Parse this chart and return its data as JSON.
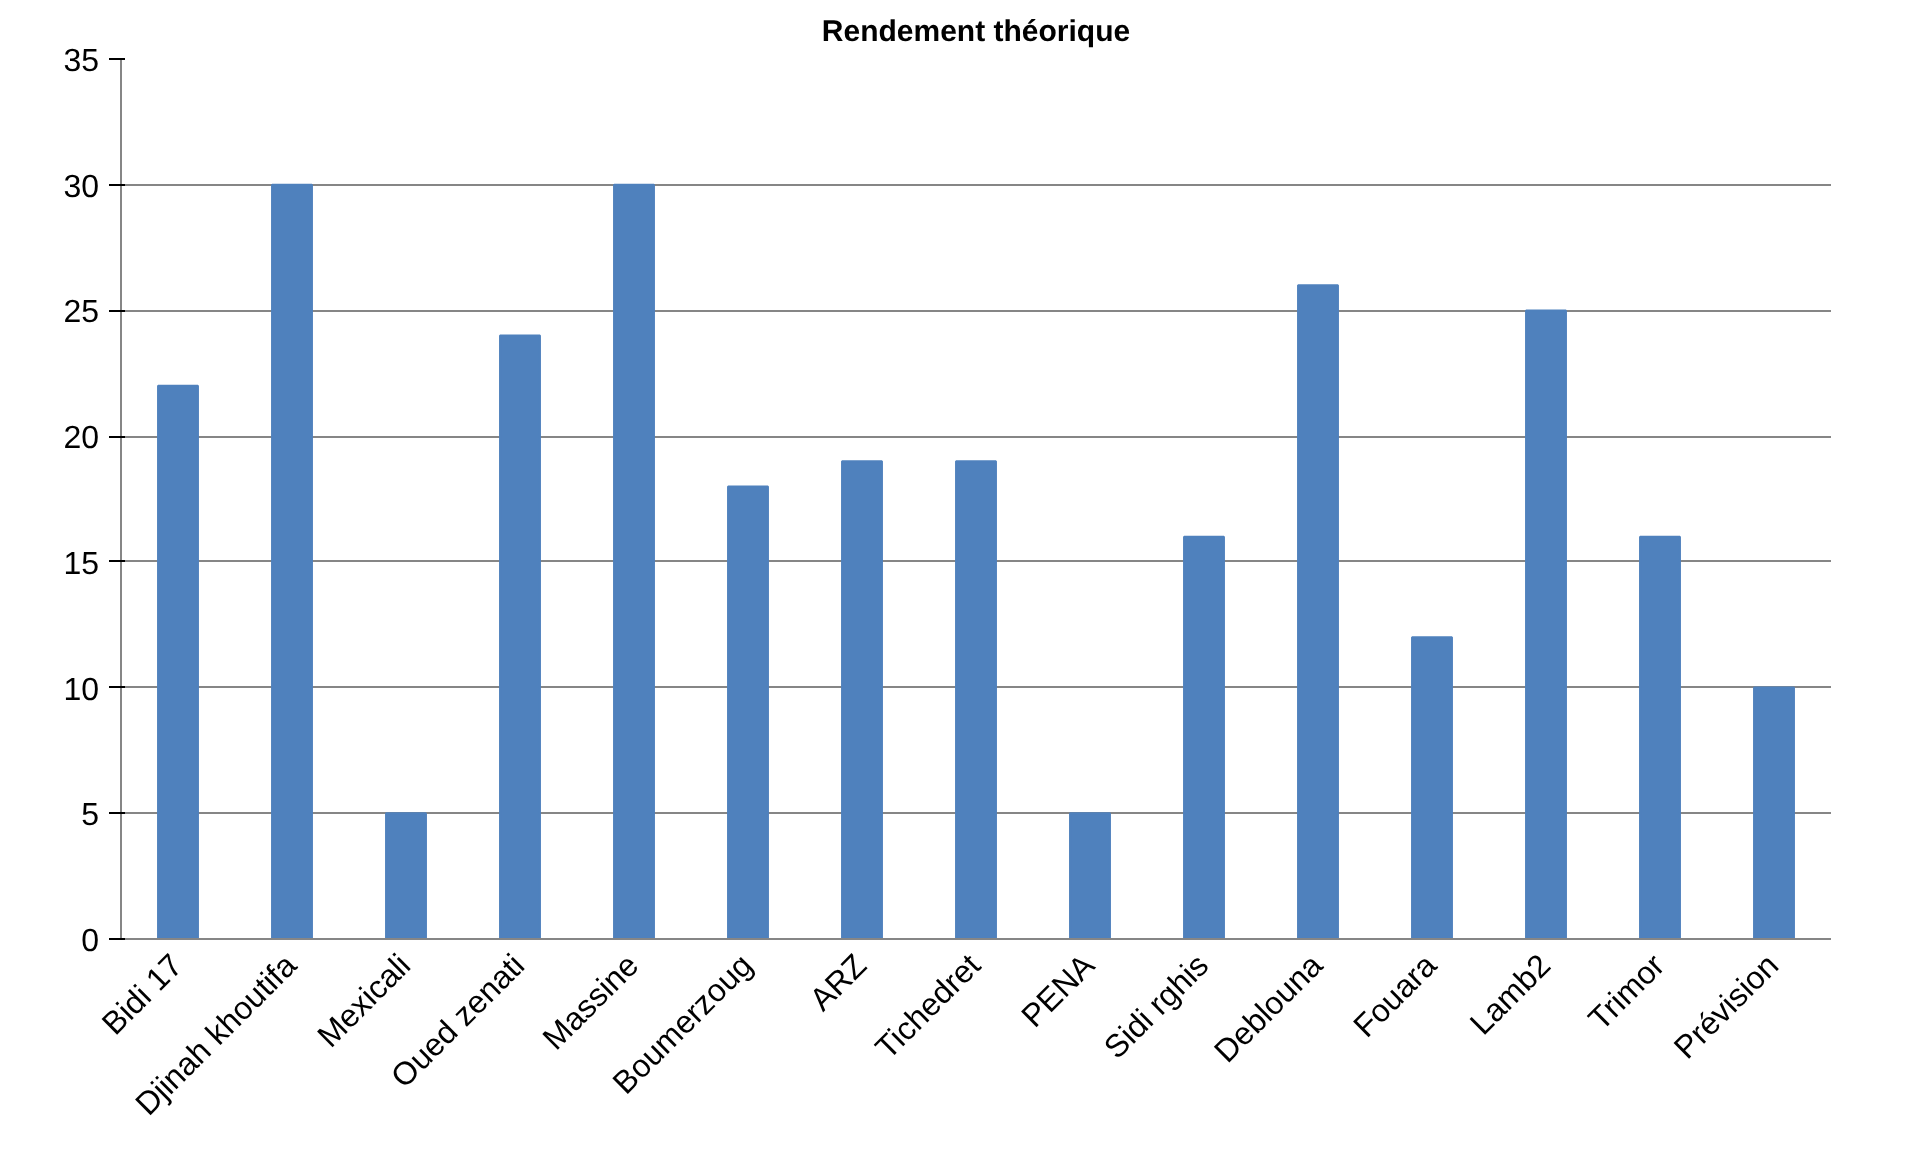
{
  "chart_data": {
    "type": "bar",
    "title": "Rendement théorique",
    "categories": [
      "Bidi 17",
      "Djinah khoutifa",
      "Mexicali",
      "Oued zenati",
      "Massine",
      "Boumerzoug",
      "ARZ",
      "Tichedret",
      "PENA",
      "Sidi rghis",
      "Deblouna",
      "Fouara",
      "Lamb2",
      "Trimor",
      "Prévision"
    ],
    "values": [
      22,
      30,
      5,
      24,
      30,
      18,
      19,
      19,
      5,
      16,
      26,
      12,
      25,
      16,
      10
    ],
    "color": "#4f81bd",
    "ylim": [
      0,
      35
    ],
    "yticks": [
      0,
      5,
      10,
      15,
      20,
      25,
      30,
      35
    ],
    "grid": "y"
  }
}
